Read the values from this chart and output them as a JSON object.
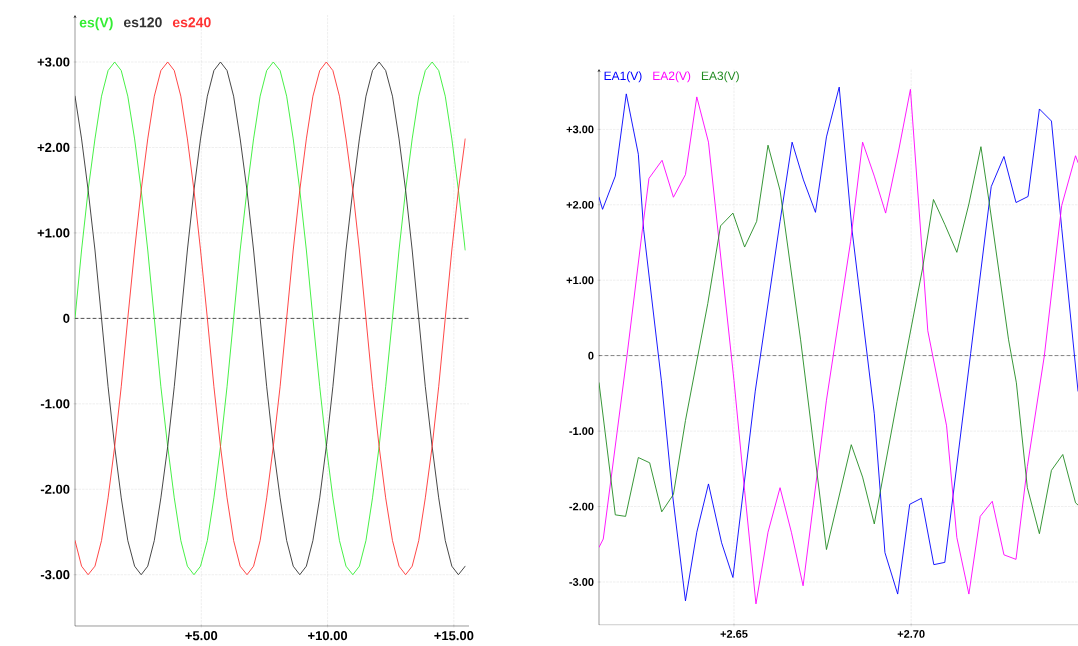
{
  "chart_data": [
    {
      "type": "line",
      "x": [
        0,
        0.26,
        0.52,
        0.79,
        1.05,
        1.31,
        1.57,
        1.83,
        2.09,
        2.36,
        2.62,
        2.88,
        3.14,
        3.4,
        3.67,
        3.93,
        4.19,
        4.45,
        4.71,
        4.97,
        5.24,
        5.5,
        5.76,
        6.02,
        6.28,
        6.54,
        6.81,
        7.07,
        7.33,
        7.59,
        7.85,
        8.12,
        8.38,
        8.64,
        8.9,
        9.16,
        9.42,
        9.69,
        9.95,
        10.21,
        10.47,
        10.73,
        11.0,
        11.26,
        11.52,
        11.78,
        12.04,
        12.3,
        12.57,
        12.83,
        13.09,
        13.35,
        13.61,
        13.87,
        14.14,
        14.4,
        14.66,
        14.92,
        15.18,
        15.45
      ],
      "series": [
        {
          "name": "es(V)",
          "color": "#33ee33",
          "values": [
            0,
            0.8,
            1.5,
            2.1,
            2.6,
            2.9,
            3,
            2.9,
            2.6,
            2.1,
            1.5,
            0.8,
            0,
            -0.8,
            -1.5,
            -2.1,
            -2.6,
            -2.9,
            -3,
            -2.9,
            -2.6,
            -2.1,
            -1.5,
            -0.8,
            0,
            0.8,
            1.5,
            2.1,
            2.6,
            2.9,
            3,
            2.9,
            2.6,
            2.1,
            1.5,
            0.8,
            0,
            -0.8,
            -1.5,
            -2.1,
            -2.6,
            -2.9,
            -3,
            -2.9,
            -2.6,
            -2.1,
            -1.5,
            -0.8,
            0,
            0.8,
            1.5,
            2.1,
            2.6,
            2.9,
            3,
            2.9,
            2.6,
            2.1,
            1.5,
            0.8
          ]
        },
        {
          "name": "es120",
          "color": "#333333",
          "values": [
            2.6,
            2.1,
            1.5,
            0.8,
            0,
            -0.8,
            -1.5,
            -2.1,
            -2.6,
            -2.9,
            -3,
            -2.9,
            -2.6,
            -2.1,
            -1.5,
            -0.8,
            0,
            0.8,
            1.5,
            2.1,
            2.6,
            2.9,
            3,
            2.9,
            2.6,
            2.1,
            1.5,
            0.8,
            0,
            -0.8,
            -1.5,
            -2.1,
            -2.6,
            -2.9,
            -3,
            -2.9,
            -2.6,
            -2.1,
            -1.5,
            -0.8,
            0,
            0.8,
            1.5,
            2.1,
            2.6,
            2.9,
            3,
            2.9,
            2.6,
            2.1,
            1.5,
            0.8,
            0,
            -0.8,
            -1.5,
            -2.1,
            -2.6,
            -2.9,
            -3,
            -2.9
          ]
        },
        {
          "name": "es240",
          "color": "#ff3333",
          "values": [
            -2.6,
            -2.9,
            -3,
            -2.9,
            -2.6,
            -2.1,
            -1.5,
            -0.8,
            0,
            0.8,
            1.5,
            2.1,
            2.6,
            2.9,
            3,
            2.9,
            2.6,
            2.1,
            1.5,
            0.8,
            0,
            -0.8,
            -1.5,
            -2.1,
            -2.6,
            -2.9,
            -3,
            -2.9,
            -2.6,
            -2.1,
            -1.5,
            -0.8,
            0,
            0.8,
            1.5,
            2.1,
            2.6,
            2.9,
            3,
            2.9,
            2.6,
            2.1,
            1.5,
            0.8,
            0,
            -0.8,
            -1.5,
            -2.1,
            -2.6,
            -2.9,
            -3,
            -2.9,
            -2.6,
            -2.1,
            -1.5,
            -0.8,
            0,
            0.8,
            1.5,
            2.1
          ]
        }
      ],
      "xlim": [
        0,
        15.6
      ],
      "ylim": [
        -3.6,
        3.55
      ],
      "xticks": [
        {
          "value": 5,
          "label": "+5.00"
        },
        {
          "value": 10,
          "label": "+10.00"
        },
        {
          "value": 15,
          "label": "+15.00"
        }
      ],
      "yticks": [
        {
          "value": -3,
          "label": "-3.00"
        },
        {
          "value": -2,
          "label": "-2.00"
        },
        {
          "value": -1,
          "label": "-1.00"
        },
        0,
        {
          "value": 1,
          "label": "+1.00"
        },
        {
          "value": 2,
          "label": "+2.00"
        },
        {
          "value": 3,
          "label": "+3.00"
        }
      ],
      "grid": true,
      "legend": "top left",
      "ref_lines": [
        {
          "axis": "y",
          "value": 0,
          "color": "#000000",
          "line_style": "dashed"
        }
      ]
    },
    {
      "type": "line",
      "series": [
        {
          "name": "EA1(V)",
          "color": "#0000ff",
          "x": [
            2.6119,
            2.6129,
            2.6165,
            2.6196,
            2.623,
            2.6245,
            2.6295,
            2.6327,
            2.6363,
            2.6395,
            2.6428,
            2.6465,
            2.6497,
            2.656,
            2.663,
            2.6664,
            2.6696,
            2.673,
            2.6761,
            2.6797,
            2.6833,
            2.6896,
            2.6926,
            2.6962,
            2.6996,
            2.7029,
            2.7064,
            2.7095,
            2.7168,
            2.7226,
            2.7262,
            2.7296,
            2.733,
            2.7362,
            2.7396,
            2.7425,
            2.7471
          ],
          "values": [
            2.1,
            1.94,
            2.38,
            3.47,
            2.67,
            1.67,
            -0.33,
            -1.86,
            -3.25,
            -2.34,
            -1.7,
            -2.48,
            -2.94,
            -0.47,
            1.78,
            2.83,
            2.33,
            1.9,
            2.9,
            3.56,
            1.67,
            -0.77,
            -2.61,
            -3.16,
            -1.97,
            -1.89,
            -2.77,
            -2.74,
            0.03,
            2.24,
            2.64,
            2.03,
            2.11,
            3.27,
            3.11,
            1.69,
            -0.47
          ]
        },
        {
          "name": "EA2(V)",
          "color": "#ff00ff",
          "x": [
            2.6119,
            2.6131,
            2.6198,
            2.6242,
            2.626,
            2.6297,
            2.6329,
            2.6363,
            2.6395,
            2.6428,
            2.65,
            2.653,
            2.6562,
            2.6596,
            2.663,
            2.6662,
            2.6695,
            2.6761,
            2.6829,
            2.6863,
            2.6896,
            2.6928,
            2.6964,
            2.6998,
            2.7047,
            2.71,
            2.7129,
            2.7163,
            2.7195,
            2.7229,
            2.7262,
            2.7296,
            2.7328,
            2.7376,
            2.7425,
            2.7464,
            2.7471
          ],
          "values": [
            -2.54,
            -2.43,
            0.0,
            1.69,
            2.35,
            2.59,
            2.1,
            2.4,
            3.43,
            2.83,
            -0.33,
            -1.79,
            -3.29,
            -2.34,
            -1.75,
            -2.34,
            -3.05,
            -0.59,
            1.51,
            2.83,
            2.38,
            1.89,
            2.7,
            3.53,
            0.33,
            -0.93,
            -2.41,
            -3.16,
            -2.13,
            -1.93,
            -2.64,
            -2.7,
            -1.47,
            0.0,
            1.99,
            2.65,
            2.56
          ]
        },
        {
          "name": "EA3(V)",
          "color": "#228b22",
          "x": [
            2.6119,
            2.6165,
            2.6194,
            2.623,
            2.6262,
            2.6296,
            2.6329,
            2.6363,
            2.6426,
            2.6462,
            2.6497,
            2.653,
            2.6564,
            2.6596,
            2.663,
            2.6688,
            2.6761,
            2.6831,
            2.6863,
            2.6896,
            2.696,
            2.7032,
            2.7063,
            2.7095,
            2.7129,
            2.7163,
            2.7197,
            2.7221,
            2.7275,
            2.7297,
            2.7328,
            2.7362,
            2.7396,
            2.7428,
            2.7464,
            2.7471
          ],
          "values": [
            -0.36,
            -2.11,
            -2.13,
            -1.35,
            -1.42,
            -2.07,
            -1.84,
            -0.86,
            0.69,
            1.72,
            1.89,
            1.44,
            1.78,
            2.79,
            2.19,
            0.21,
            -2.57,
            -1.18,
            -1.61,
            -2.23,
            -0.61,
            1.15,
            2.07,
            1.74,
            1.37,
            2.01,
            2.77,
            2.01,
            0.21,
            -0.36,
            -1.75,
            -2.36,
            -1.52,
            -1.31,
            -1.95,
            -1.98
          ]
        }
      ],
      "xlim": [
        2.6119,
        2.7471
      ],
      "ylim": [
        -3.57,
        3.8
      ],
      "xticks": [
        {
          "value": 2.65,
          "label": "+2.65"
        },
        {
          "value": 2.7,
          "label": "+2.70"
        }
      ],
      "yticks": [
        {
          "value": -3,
          "label": "-3.00"
        },
        {
          "value": -2,
          "label": "-2.00"
        },
        {
          "value": -1,
          "label": "-1.00"
        },
        0,
        {
          "value": 1,
          "label": "+1.00"
        },
        {
          "value": 2,
          "label": "+2.00"
        },
        {
          "value": 3,
          "label": "+3.00"
        }
      ],
      "grid": true,
      "legend": "top left",
      "ref_lines": [
        {
          "axis": "y",
          "value": 0,
          "color": "#000000",
          "line_style": "dashed"
        }
      ]
    }
  ]
}
